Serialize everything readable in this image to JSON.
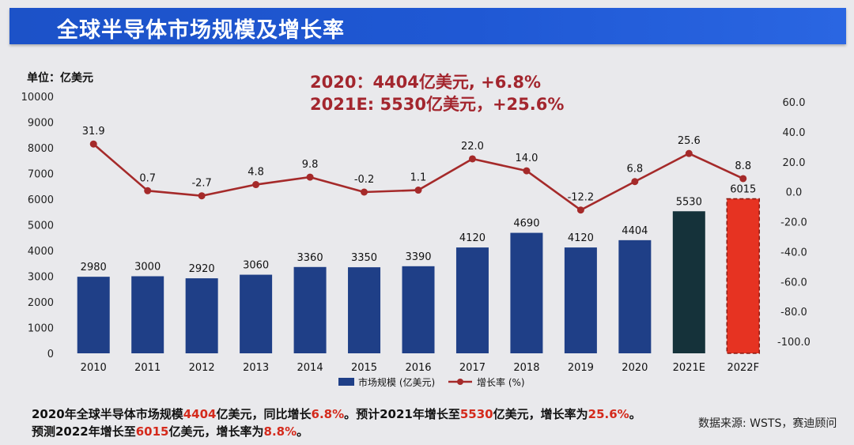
{
  "header": {
    "title": "全球半导体市场规模及增长率"
  },
  "unit_label": "单位：亿美元",
  "highlight": {
    "line1": "2020：4404亿美元, +6.8%",
    "line2": "2021E: 5530亿美元，+25.6%"
  },
  "chart_data": {
    "type": "bar",
    "categories": [
      "2010",
      "2011",
      "2012",
      "2013",
      "2014",
      "2015",
      "2016",
      "2017",
      "2018",
      "2019",
      "2020",
      "2021E",
      "2022F"
    ],
    "series": [
      {
        "name": "市场规模 (亿美元)",
        "type": "bar",
        "values": [
          2980,
          3000,
          2920,
          3060,
          3360,
          3350,
          3390,
          4120,
          4690,
          4120,
          4404,
          5530,
          6015
        ],
        "colors": [
          "#1f3f87",
          "#1f3f87",
          "#1f3f87",
          "#1f3f87",
          "#1f3f87",
          "#1f3f87",
          "#1f3f87",
          "#1f3f87",
          "#1f3f87",
          "#1f3f87",
          "#1f3f87",
          "#15323a",
          "#e63322"
        ]
      },
      {
        "name": "增长率 (%)",
        "type": "line",
        "axis": "right",
        "color": "#a52a2a",
        "values": [
          31.9,
          0.7,
          -2.7,
          4.8,
          9.8,
          -0.2,
          1.1,
          22.0,
          14.0,
          -12.2,
          6.8,
          25.6,
          8.8
        ]
      }
    ],
    "y_left": {
      "range": [
        0,
        10000
      ],
      "ticks": [
        0,
        1000,
        2000,
        3000,
        4000,
        5000,
        6000,
        7000,
        8000,
        9000,
        10000
      ]
    },
    "y_right": {
      "range": [
        -100,
        60
      ],
      "ticks": [
        "60.0",
        "40.0",
        "20.0",
        "0.0",
        "-20.0",
        "-40.0",
        "-60.0",
        "-80.0",
        "-100.0"
      ]
    },
    "legend_position": "bottom"
  },
  "footer": {
    "p1": "2020年全球半导体市场规模",
    "v1": "4404",
    "p2": "亿美元，同比增长",
    "v2": "6.8%",
    "p3": "。预计2021年增长至",
    "v3": "5530",
    "p4": "亿美元，增长率为",
    "v4": "25.6%",
    "p5": "。",
    "p6": "预测2022年增长至",
    "v5": "6015",
    "p7": "亿美元，增长率为",
    "v6": "8.8%",
    "p8": "。"
  },
  "source": "数据来源: WSTS，赛迪顾问"
}
